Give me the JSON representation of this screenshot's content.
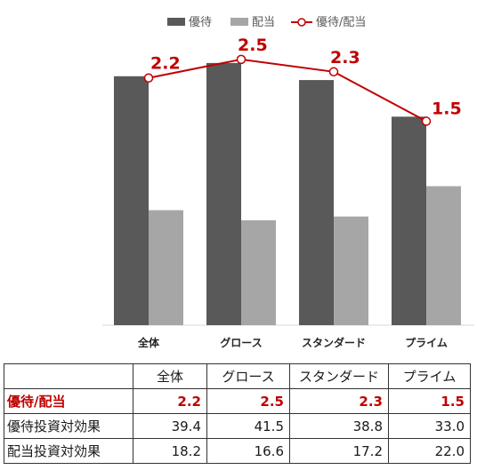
{
  "chart_data": {
    "type": "bar",
    "categories": [
      "全体",
      "グロース",
      "スタンダード",
      "プライム"
    ],
    "series": [
      {
        "name": "優待",
        "kind": "bar",
        "values": [
          39.4,
          41.5,
          38.8,
          33.0
        ],
        "color": "#595959"
      },
      {
        "name": "配当",
        "kind": "bar",
        "values": [
          18.2,
          16.6,
          17.2,
          22.0
        ],
        "color": "#a6a6a6"
      },
      {
        "name": "優待/配当",
        "kind": "line",
        "values": [
          2.2,
          2.5,
          2.3,
          1.5
        ],
        "color": "#c00000"
      }
    ],
    "data_labels": [
      "2.2",
      "2.5",
      "2.3",
      "1.5"
    ],
    "legend_position": "top",
    "grid": false,
    "bar_ylim": [
      0,
      45
    ],
    "line_ylim": [
      -1.8,
      2.8
    ]
  },
  "table": {
    "header": [
      "",
      "全体",
      "グロース",
      "スタンダード",
      "プライム"
    ],
    "rows": [
      {
        "label": "優待/配当",
        "values": [
          "2.2",
          "2.5",
          "2.3",
          "1.5"
        ],
        "highlight": true
      },
      {
        "label": "優待投資対効果",
        "values": [
          "39.4",
          "41.5",
          "38.8",
          "33.0"
        ],
        "highlight": false
      },
      {
        "label": "配当投資対効果",
        "values": [
          "18.2",
          "16.6",
          "17.2",
          "22.0"
        ],
        "highlight": false
      }
    ]
  }
}
